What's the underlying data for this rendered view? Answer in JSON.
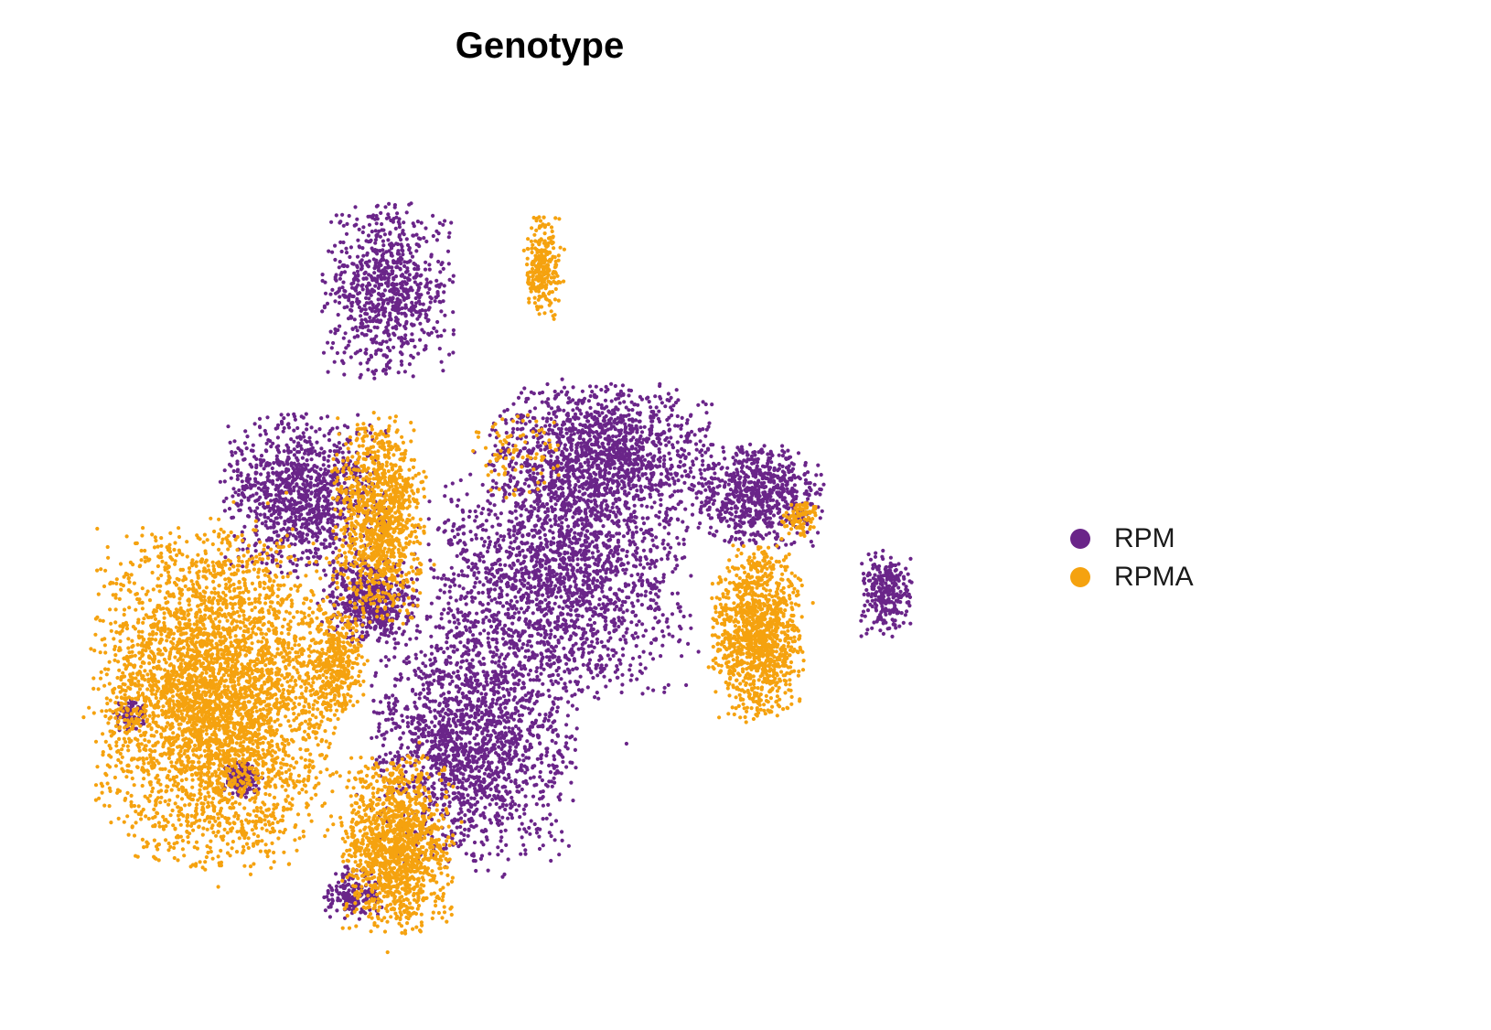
{
  "chart_data": {
    "type": "scatter",
    "title": "Genotype",
    "xlabel": "",
    "ylabel": "",
    "grid": false,
    "axes_visible": false,
    "legend_position": "right",
    "point_count_each_series": "approx. 10000 cells",
    "series": [
      {
        "name": "RPM",
        "color": "#6A2589",
        "clusters": [
          {
            "cx": 0.35,
            "cy": 0.8,
            "rx": 0.07,
            "ry": 0.1,
            "weight": 0.09
          },
          {
            "cx": 0.25,
            "cy": 0.55,
            "rx": 0.09,
            "ry": 0.09,
            "weight": 0.12
          },
          {
            "cx": 0.55,
            "cy": 0.45,
            "rx": 0.14,
            "ry": 0.14,
            "weight": 0.22
          },
          {
            "cx": 0.45,
            "cy": 0.25,
            "rx": 0.11,
            "ry": 0.14,
            "weight": 0.2
          },
          {
            "cx": 0.6,
            "cy": 0.6,
            "rx": 0.12,
            "ry": 0.08,
            "weight": 0.15
          },
          {
            "cx": 0.78,
            "cy": 0.55,
            "rx": 0.07,
            "ry": 0.06,
            "weight": 0.08
          },
          {
            "cx": 0.33,
            "cy": 0.42,
            "rx": 0.05,
            "ry": 0.05,
            "weight": 0.06
          },
          {
            "cx": 0.93,
            "cy": 0.43,
            "rx": 0.03,
            "ry": 0.05,
            "weight": 0.03
          },
          {
            "cx": 0.31,
            "cy": 0.06,
            "rx": 0.03,
            "ry": 0.03,
            "weight": 0.02
          },
          {
            "cx": 0.05,
            "cy": 0.28,
            "rx": 0.02,
            "ry": 0.02,
            "weight": 0.01
          },
          {
            "cx": 0.18,
            "cy": 0.2,
            "rx": 0.02,
            "ry": 0.02,
            "weight": 0.02
          }
        ]
      },
      {
        "name": "RPMA",
        "color": "#F5A20F",
        "clusters": [
          {
            "cx": 0.15,
            "cy": 0.3,
            "rx": 0.13,
            "ry": 0.19,
            "weight": 0.45
          },
          {
            "cx": 0.36,
            "cy": 0.12,
            "rx": 0.06,
            "ry": 0.1,
            "weight": 0.15
          },
          {
            "cx": 0.34,
            "cy": 0.52,
            "rx": 0.05,
            "ry": 0.12,
            "weight": 0.12
          },
          {
            "cx": 0.78,
            "cy": 0.38,
            "rx": 0.05,
            "ry": 0.1,
            "weight": 0.13
          },
          {
            "cx": 0.29,
            "cy": 0.34,
            "rx": 0.03,
            "ry": 0.06,
            "weight": 0.04
          },
          {
            "cx": 0.53,
            "cy": 0.83,
            "rx": 0.02,
            "ry": 0.06,
            "weight": 0.03
          },
          {
            "cx": 0.83,
            "cy": 0.52,
            "rx": 0.02,
            "ry": 0.02,
            "weight": 0.01
          },
          {
            "cx": 0.5,
            "cy": 0.6,
            "rx": 0.05,
            "ry": 0.05,
            "weight": 0.01
          }
        ]
      }
    ]
  }
}
